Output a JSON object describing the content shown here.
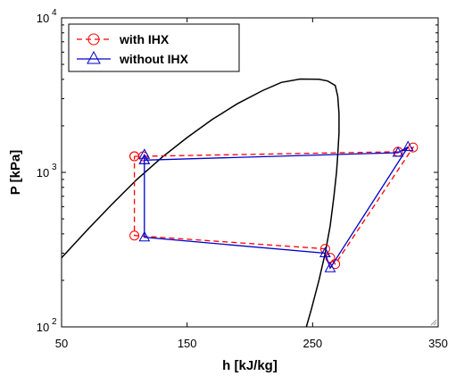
{
  "chart_data": {
    "type": "line",
    "xlabel": "h [kJ/kg]",
    "ylabel": "P [kPa]",
    "xlim": [
      50,
      350
    ],
    "ylim": [
      100,
      10000
    ],
    "yscale": "log",
    "xticks": [
      {
        "value": 50,
        "label": "50"
      },
      {
        "value": 150,
        "label": "150"
      },
      {
        "value": 250,
        "label": "250"
      },
      {
        "value": 350,
        "label": "350"
      }
    ],
    "yticks": [
      {
        "value": 100,
        "base": "10",
        "exp": "2"
      },
      {
        "value": 1000,
        "base": "10",
        "exp": "3"
      },
      {
        "value": 10000,
        "base": "10",
        "exp": "4"
      }
    ],
    "grid": false,
    "legend_position": "top-left",
    "saturation_dome": {
      "color": "#000000",
      "left": [
        [
          50,
          280
        ],
        [
          70,
          420
        ],
        [
          90,
          620
        ],
        [
          110,
          900
        ],
        [
          130,
          1250
        ],
        [
          150,
          1680
        ],
        [
          170,
          2200
        ],
        [
          190,
          2780
        ],
        [
          210,
          3380
        ],
        [
          225,
          3820
        ],
        [
          240,
          4020
        ]
      ],
      "top": [
        [
          240,
          4020
        ],
        [
          255,
          4000
        ],
        [
          262,
          3900
        ],
        [
          268,
          3650
        ]
      ],
      "right": [
        [
          268,
          3650
        ],
        [
          270,
          3100
        ],
        [
          271,
          2400
        ],
        [
          271,
          1800
        ],
        [
          270,
          1300
        ],
        [
          269,
          1000
        ],
        [
          267,
          700
        ],
        [
          264,
          450
        ],
        [
          260,
          300
        ],
        [
          255,
          200
        ],
        [
          249,
          130
        ],
        [
          245,
          100
        ]
      ]
    },
    "series": [
      {
        "name": "with IHX",
        "color": "#ff0000",
        "dash": "6,4",
        "marker": "circle",
        "points": [
          [
            108,
            1270
          ],
          [
            115,
            1270
          ],
          [
            318,
            1360
          ],
          [
            330,
            1450
          ],
          [
            268,
            255
          ],
          [
            264,
            280
          ],
          [
            260,
            320
          ],
          [
            108,
            390
          ],
          [
            108,
            1270
          ]
        ]
      },
      {
        "name": "without IHX",
        "color": "#0000cc",
        "dash": "",
        "marker": "triangle",
        "points": [
          [
            116,
            1300
          ],
          [
            116,
            1200
          ],
          [
            318,
            1340
          ],
          [
            326,
            1460
          ],
          [
            264,
            240
          ],
          [
            260,
            300
          ],
          [
            116,
            380
          ],
          [
            116,
            1200
          ]
        ]
      }
    ]
  }
}
